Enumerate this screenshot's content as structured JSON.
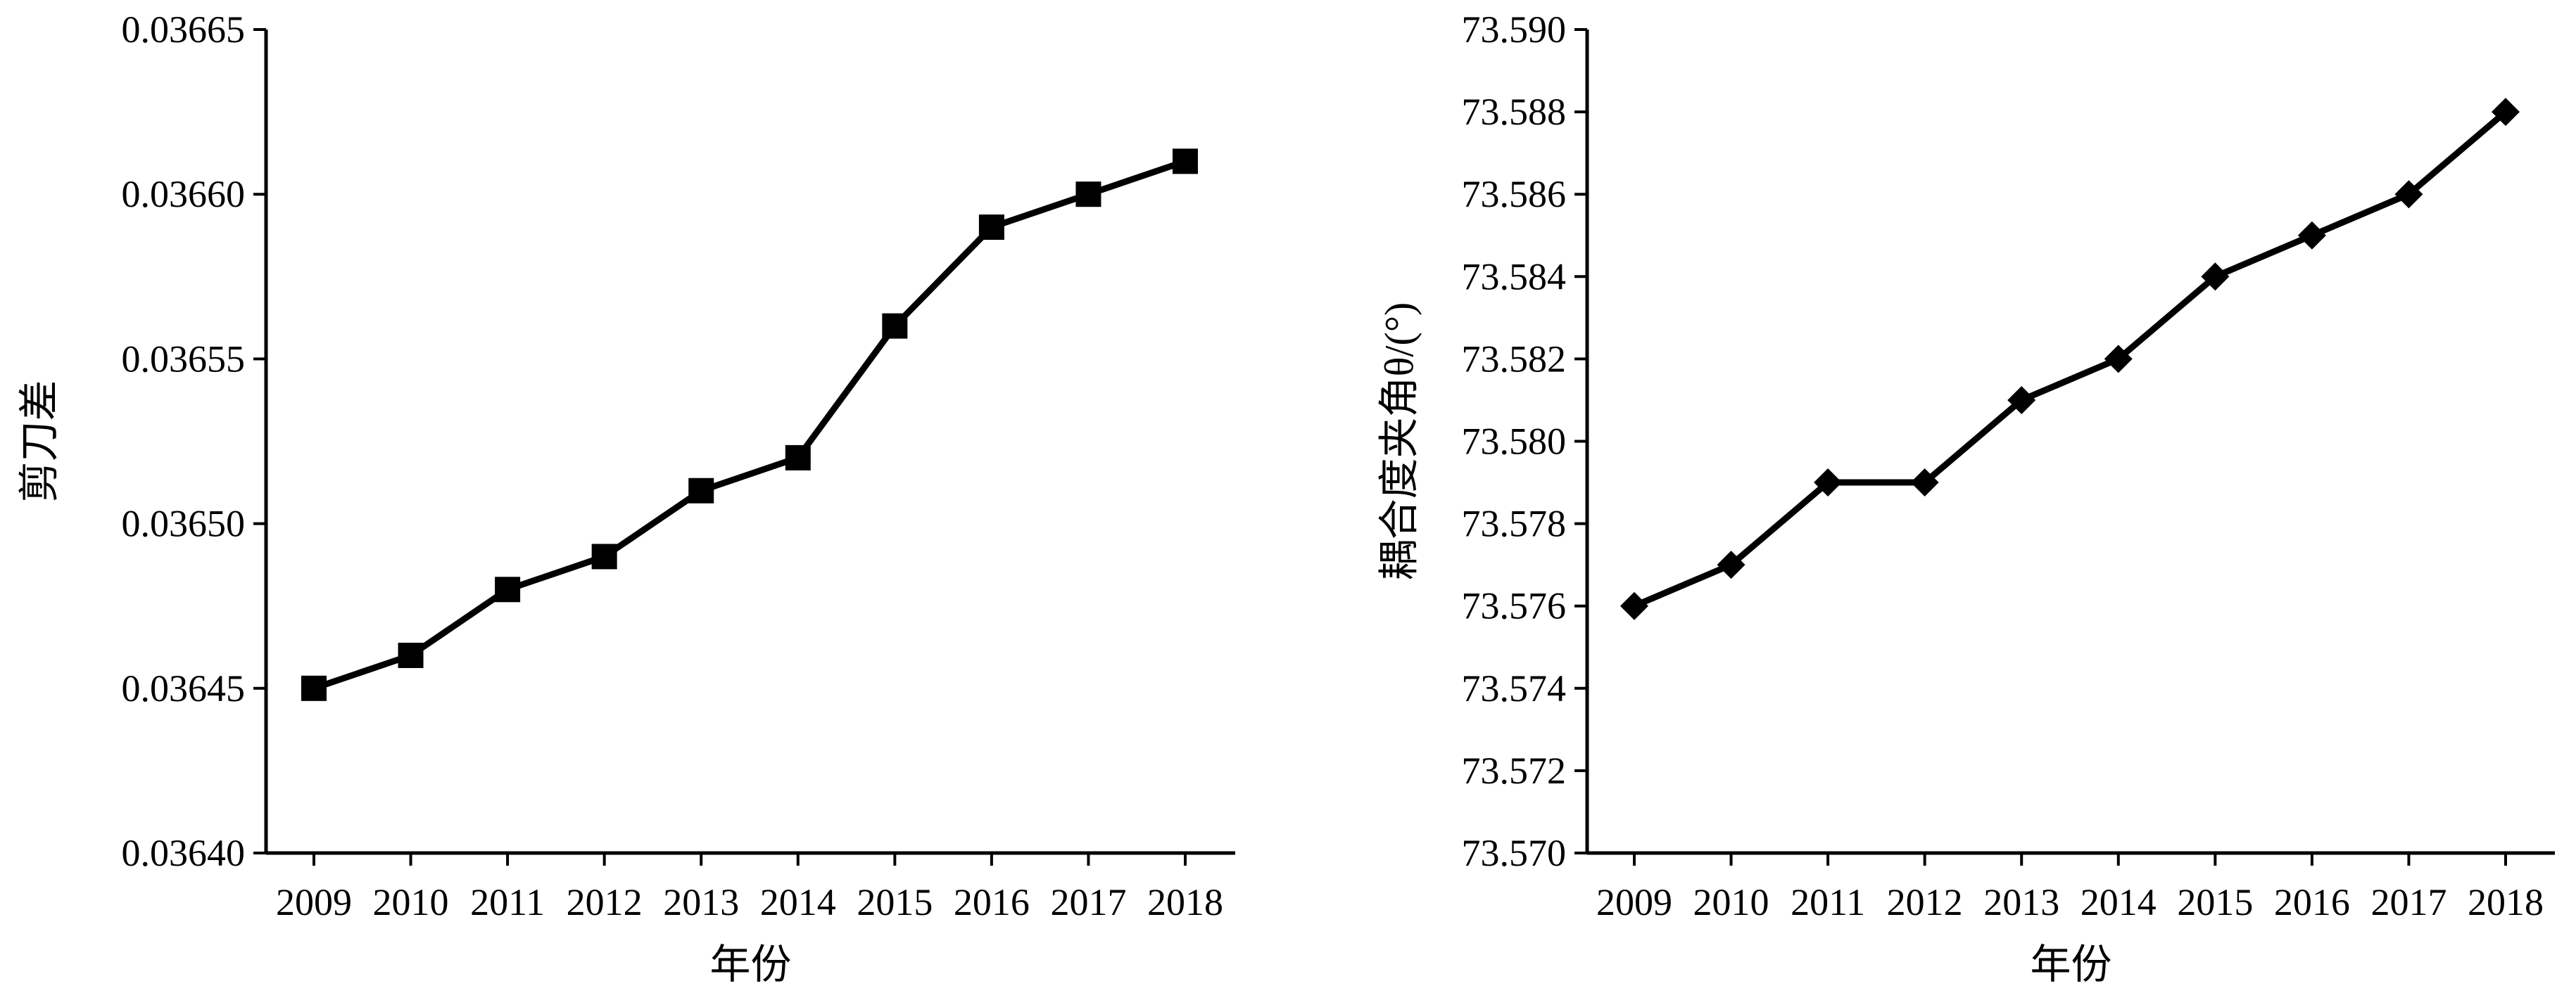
{
  "chart_data": [
    {
      "type": "line",
      "title": "",
      "xlabel": "年份",
      "ylabel": "剪刀差",
      "categories": [
        "2009",
        "2010",
        "2011",
        "2012",
        "2013",
        "2014",
        "2015",
        "2016",
        "2017",
        "2018"
      ],
      "series": [
        {
          "values": [
            0.03645,
            0.03646,
            0.03648,
            0.03649,
            0.03651,
            0.03652,
            0.03656,
            0.03659,
            0.0366,
            0.03661
          ],
          "marker": "square",
          "color": "#000000"
        }
      ],
      "ylim": [
        0.0364,
        0.03665
      ],
      "yticks": [
        "0.03640",
        "0.03645",
        "0.03650",
        "0.03655",
        "0.03660",
        "0.03665"
      ],
      "grid": false,
      "legend": "none"
    },
    {
      "type": "line",
      "title": "",
      "xlabel": "年份",
      "ylabel": "耦合度夹角θ/(°)",
      "categories": [
        "2009",
        "2010",
        "2011",
        "2012",
        "2013",
        "2014",
        "2015",
        "2016",
        "2017",
        "2018"
      ],
      "series": [
        {
          "values": [
            73.576,
            73.577,
            73.579,
            73.579,
            73.581,
            73.582,
            73.584,
            73.585,
            73.586,
            73.588
          ],
          "marker": "diamond",
          "color": "#000000"
        }
      ],
      "ylim": [
        73.57,
        73.59
      ],
      "yticks": [
        "73.570",
        "73.572",
        "73.574",
        "73.576",
        "73.578",
        "73.580",
        "73.582",
        "73.584",
        "73.586",
        "73.588",
        "73.590"
      ],
      "grid": false,
      "legend": "none"
    }
  ]
}
